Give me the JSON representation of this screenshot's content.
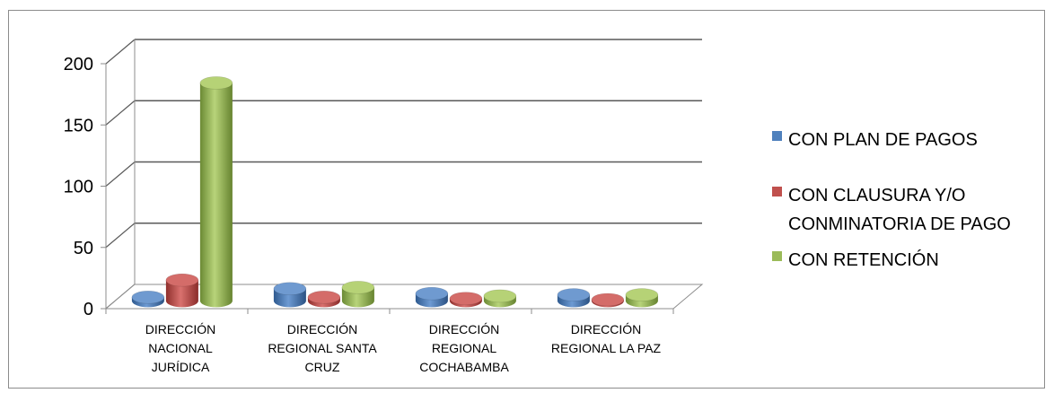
{
  "chart_data": {
    "type": "bar",
    "categories": [
      "DIRECCIÓN NACIONAL JURÍDICA",
      "DIRECCIÓN REGIONAL SANTA CRUZ",
      "DIRECCIÓN REGIONAL COCHABAMBA",
      "DIRECCIÓN REGIONAL LA PAZ"
    ],
    "category_lines": [
      [
        "DIRECCIÓN",
        "NACIONAL",
        "JURÍDICA"
      ],
      [
        "DIRECCIÓN",
        "REGIONAL SANTA",
        "CRUZ"
      ],
      [
        "DIRECCIÓN",
        "REGIONAL",
        "COCHABAMBA"
      ],
      [
        "DIRECCIÓN",
        "REGIONAL LA PAZ"
      ]
    ],
    "series": [
      {
        "name": "CON PLAN DE PAGOS",
        "name_lines": [
          "CON PLAN DE PAGOS"
        ],
        "color": "#4f81bd",
        "values": [
          3,
          10,
          6,
          5
        ]
      },
      {
        "name": "CON CLAUSURA Y/O CONMINATORIA DE PAGO",
        "name_lines": [
          "CON CLAUSURA Y/O",
          "CONMINATORIA DE PAGO"
        ],
        "color": "#c0504d",
        "values": [
          17,
          3,
          2,
          1
        ]
      },
      {
        "name": "CON RETENCIÓN",
        "name_lines": [
          "CON RETENCIÓN"
        ],
        "color": "#9bbb59",
        "values": [
          178,
          11,
          4,
          5
        ]
      }
    ],
    "yticks": [
      "0",
      "50",
      "100",
      "150",
      "200"
    ],
    "ylim": [
      0,
      200
    ],
    "grid": true,
    "legend": "right",
    "three_d": true
  }
}
